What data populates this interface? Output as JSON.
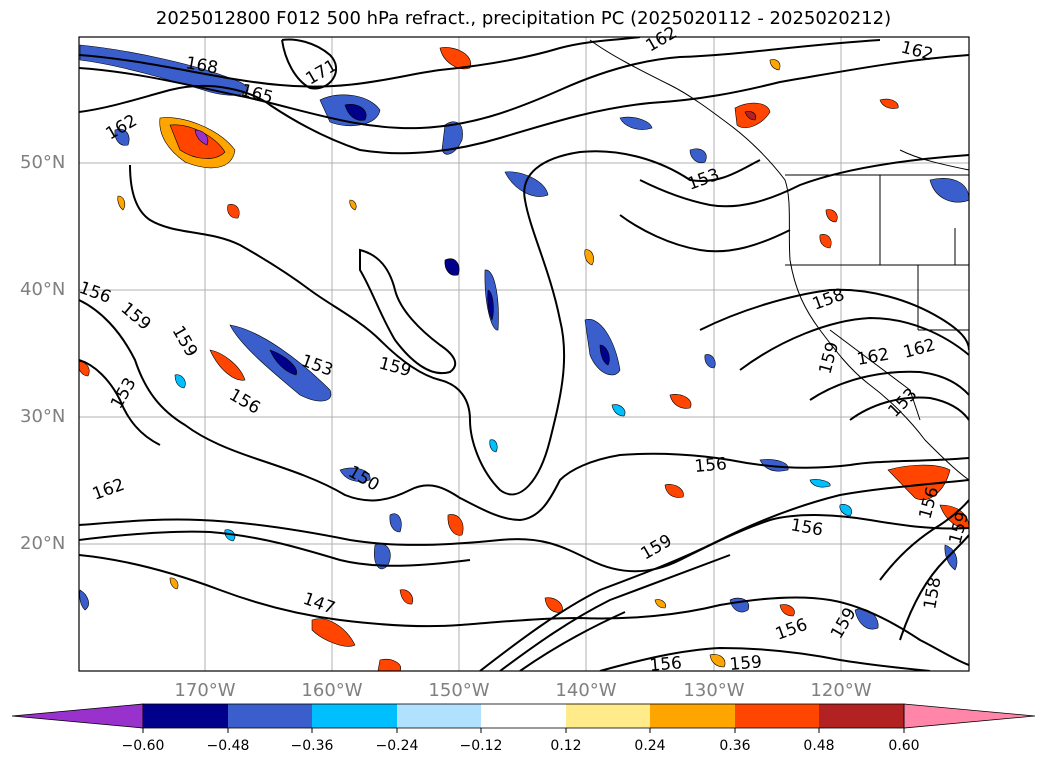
{
  "title": "2025012800 F012 500 hPa refract., precipitation PC (2025020112 - 2025020212)",
  "map": {
    "lat_labels": [
      "50°N",
      "40°N",
      "30°N",
      "20°N"
    ],
    "lon_labels": [
      "170°W",
      "160°W",
      "150°W",
      "140°W",
      "130°W",
      "120°W"
    ],
    "contour_labels": [
      "168",
      "165",
      "171",
      "162",
      "162",
      "162",
      "153",
      "156",
      "159",
      "159",
      "153",
      "156",
      "159",
      "153",
      "150",
      "162",
      "147",
      "156",
      "156",
      "159",
      "156",
      "159",
      "158",
      "159",
      "162",
      "162",
      "153",
      "159",
      "156",
      "158",
      "159",
      "156"
    ]
  },
  "colorbar": {
    "ticks": [
      "−0.60",
      "−0.48",
      "−0.36",
      "−0.24",
      "−0.12",
      "0.12",
      "0.24",
      "0.36",
      "0.48",
      "0.60"
    ],
    "colors": [
      "#9932cc",
      "#00008b",
      "#3a5fcd",
      "#00bfff",
      "#b0e2ff",
      "#ffffff",
      "#ffeb8a",
      "#ffa500",
      "#ff4500",
      "#b22222",
      "#ff86a8"
    ]
  }
}
